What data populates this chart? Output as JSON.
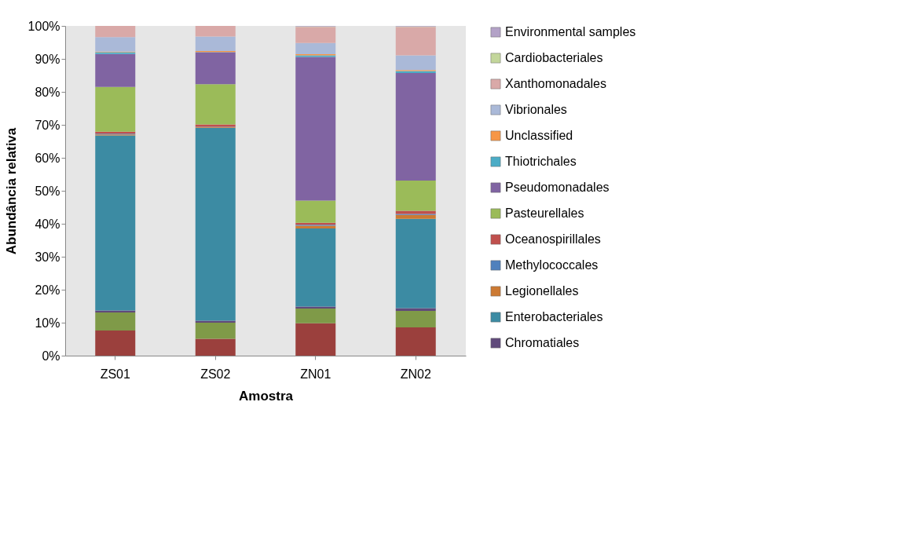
{
  "chart_data": {
    "type": "bar",
    "stacked": true,
    "xlabel": "Amostra",
    "ylabel": "Abundância relativa",
    "categories": [
      "ZS01",
      "ZS02",
      "ZN01",
      "ZN02"
    ],
    "series": [
      {
        "color": "#9b403d",
        "values": [
          7.6,
          5.1,
          9.8,
          8.6
        ]
      },
      {
        "color": "#7f9a48",
        "values": [
          5.5,
          4.9,
          4.5,
          5.0
        ]
      },
      {
        "name": "Chromatiales",
        "color": "#604a7b",
        "values": [
          0.6,
          0.6,
          0.6,
          0.8
        ]
      },
      {
        "name": "Enterobacteriales",
        "color": "#3c8ba3",
        "values": [
          53.1,
          58.5,
          23.7,
          27.1
        ]
      },
      {
        "name": "Legionellales",
        "color": "#cc7a33",
        "values": [
          0.3,
          0.2,
          0.8,
          1.2
        ]
      },
      {
        "name": "Methylococcales",
        "color": "#4f81bd",
        "values": [
          0.2,
          0.1,
          0.3,
          0.3
        ]
      },
      {
        "name": "Oceanospirillales",
        "color": "#c0504d",
        "values": [
          0.6,
          0.7,
          0.6,
          0.9
        ]
      },
      {
        "name": "Pasteurellales",
        "color": "#9bbb59",
        "values": [
          13.6,
          12.2,
          6.7,
          9.2
        ]
      },
      {
        "name": "Pseudomonadales",
        "color": "#8064a2",
        "values": [
          10.0,
          9.7,
          43.6,
          32.6
        ]
      },
      {
        "name": "Thiotrichales",
        "color": "#4bacc6",
        "values": [
          0.5,
          0.1,
          0.5,
          0.6
        ]
      },
      {
        "name": "Unclassified",
        "color": "#f79646",
        "values": [
          0.2,
          0.3,
          0.3,
          0.3
        ]
      },
      {
        "name": "Vibrionales",
        "color": "#aab9d8",
        "values": [
          4.4,
          4.4,
          3.4,
          4.5
        ]
      },
      {
        "name": "Xanthomonadales",
        "color": "#d9a9a8",
        "values": [
          3.4,
          3.2,
          4.9,
          8.6
        ]
      },
      {
        "name": "Cardiobacteriales",
        "color": "#c3d69b",
        "values": [
          0,
          0,
          0.1,
          0.1
        ]
      },
      {
        "name": "Environmental samples",
        "color": "#b3a2c7",
        "values": [
          0,
          0,
          0.2,
          0.2
        ]
      }
    ],
    "ylim": [
      0,
      100
    ],
    "yticks": [
      {
        "value": 0,
        "label": "0%"
      },
      {
        "value": 10,
        "label": "10%"
      },
      {
        "value": 20,
        "label": "20%"
      },
      {
        "value": 30,
        "label": "30%"
      },
      {
        "value": 40,
        "label": "40%"
      },
      {
        "value": 50,
        "label": "50%"
      },
      {
        "value": 60,
        "label": "60%"
      },
      {
        "value": 70,
        "label": "70%"
      },
      {
        "value": 80,
        "label": "80%"
      },
      {
        "value": 90,
        "label": "90%"
      },
      {
        "value": 100,
        "label": "100%"
      }
    ],
    "grid": false,
    "legend": "right"
  }
}
